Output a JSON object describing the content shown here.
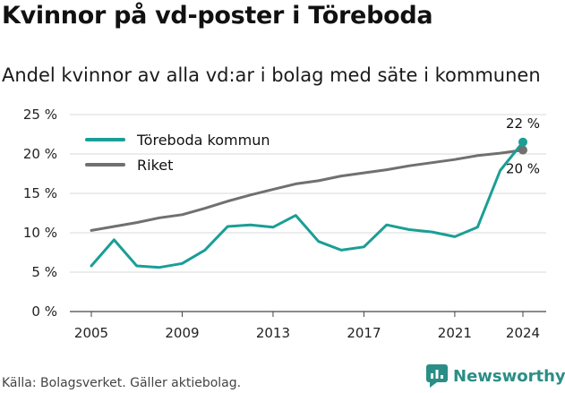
{
  "header": {
    "title": "Kvinnor på vd-poster i Töreboda",
    "subtitle": "Andel kvinnor av alla vd:ar i bolag med säte i kommunen"
  },
  "footer": {
    "source": "Källa: Bolagsverket. Gäller aktiebolag.",
    "brand": "Newsworthy",
    "brand_color": "#2a8e86"
  },
  "chart_data": {
    "type": "line",
    "title": "Kvinnor på vd-poster i Töreboda",
    "subtitle": "Andel kvinnor av alla vd:ar i bolag med säte i kommunen",
    "x": [
      2005,
      2006,
      2007,
      2008,
      2009,
      2010,
      2011,
      2012,
      2013,
      2014,
      2015,
      2016,
      2017,
      2018,
      2019,
      2020,
      2021,
      2022,
      2023,
      2024
    ],
    "series": [
      {
        "name": "Töreboda kommun",
        "color": "#1a9e96",
        "values": [
          5.8,
          9.1,
          5.8,
          5.6,
          6.1,
          7.8,
          10.8,
          11.0,
          10.7,
          12.2,
          8.9,
          7.8,
          8.2,
          11.0,
          10.4,
          10.1,
          9.5,
          10.7,
          17.9,
          21.5
        ]
      },
      {
        "name": "Riket",
        "color": "#707070",
        "values": [
          10.3,
          10.8,
          11.3,
          11.9,
          12.3,
          13.1,
          14.0,
          14.8,
          15.5,
          16.2,
          16.6,
          17.2,
          17.6,
          18.0,
          18.5,
          18.9,
          19.3,
          19.8,
          20.1,
          20.5
        ]
      }
    ],
    "end_labels": [
      "22 %",
      "20 %"
    ],
    "y_ticks": [
      "0 %",
      "5 %",
      "10 %",
      "15 %",
      "20 %",
      "25 %"
    ],
    "x_ticks": [
      "2005",
      "2009",
      "2013",
      "2017",
      "2021",
      "2024"
    ],
    "ylim": [
      0,
      25
    ],
    "xlim": [
      2005,
      2024
    ],
    "grid": true,
    "legend_position": "top-left"
  }
}
